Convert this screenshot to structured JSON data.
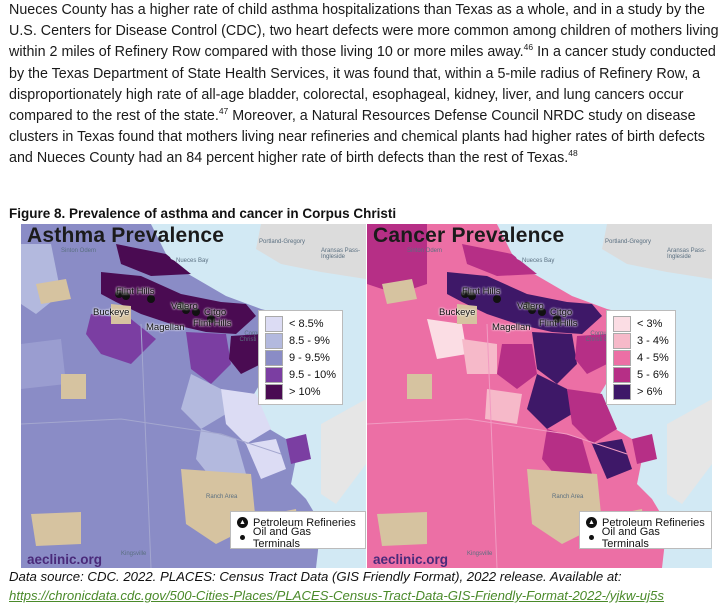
{
  "body_text": {
    "s1": "Nueces County has a higher rate of child asthma hospitalizations than Texas as a whole, and in a study by the U.S. Centers for Disease Control (CDC), two heart defects were more common among children of mothers living within 2 miles of Refinery Row compared with those living 10 or more miles away.",
    "ref1": "46",
    "s2": " In a cancer study conducted by the Texas Department of State Health Services, it was found that, within a 5-mile radius of Refinery Row, a disproportionately high rate of all-age bladder, colorectal, esophageal, kidney, liver, and lung cancers occur compared to the rest of the state.",
    "ref2": "47",
    "s3": " Moreover, a Natural Resources Defense Council NRDC study on disease clusters in Texas found that mothers living near refineries and chemical plants had higher rates of birth defects and Nueces County had an 84 percent higher rate of birth defects than the rest of Texas.",
    "ref3": "48"
  },
  "figure": {
    "title": "Figure 8. Prevalence of asthma and cancer in Corpus Christi",
    "caption": "Data source: CDC. 2022. PLACES: Census Tract Data (GIS Friendly Format), 2022 release. Available at:",
    "link": "https://chronicdata.cdc.gov/500-Cities-Places/PLACES-Census-Tract-Data-GIS-Friendly-Format-2022-/yjkw-uj5s"
  },
  "maps": [
    {
      "title": "Asthma Prevalence",
      "brand": "aeclinic.org",
      "legend": [
        {
          "label": "< 8.5%",
          "color": "#dcdcf4"
        },
        {
          "label": "8.5 - 9%",
          "color": "#b3b9de"
        },
        {
          "label": "9 - 9.5%",
          "color": "#8a8cc6"
        },
        {
          "label": "9.5 - 10%",
          "color": "#7b3ea2"
        },
        {
          "label": "> 10%",
          "color": "#4a0b52"
        }
      ]
    },
    {
      "title": "Cancer Prevalence",
      "brand": "aeclinic.org",
      "legend": [
        {
          "label": "< 3%",
          "color": "#fbdde4"
        },
        {
          "label": "3 - 4%",
          "color": "#f6b9c9"
        },
        {
          "label": "4 - 5%",
          "color": "#ec6fa5"
        },
        {
          "label": "5 - 6%",
          "color": "#b62f86"
        },
        {
          "label": "> 6%",
          "color": "#3e1868"
        }
      ]
    }
  ],
  "map_legend": {
    "refineries": "Petroleum Refineries",
    "terminals": "Oil and Gas Terminals"
  },
  "places": {
    "flint_hills": "Flint Hills",
    "valero": "Valero",
    "buckeye": "Buckeye",
    "citgo": "Citgo",
    "magellan": "Magellan",
    "flint_hills_2": "Flint Hills",
    "nueces_bay": "Nueces Bay",
    "corpus_christi_bay": "Corpus Christi Bay",
    "portland_gregory": "Portland-Gregory",
    "sinton_odem": "Sinton Odem",
    "aransas_pass": "Aransas Pass-Ingleside",
    "ranch_area": "Ranch Area",
    "kingsville": "Kingsville"
  }
}
